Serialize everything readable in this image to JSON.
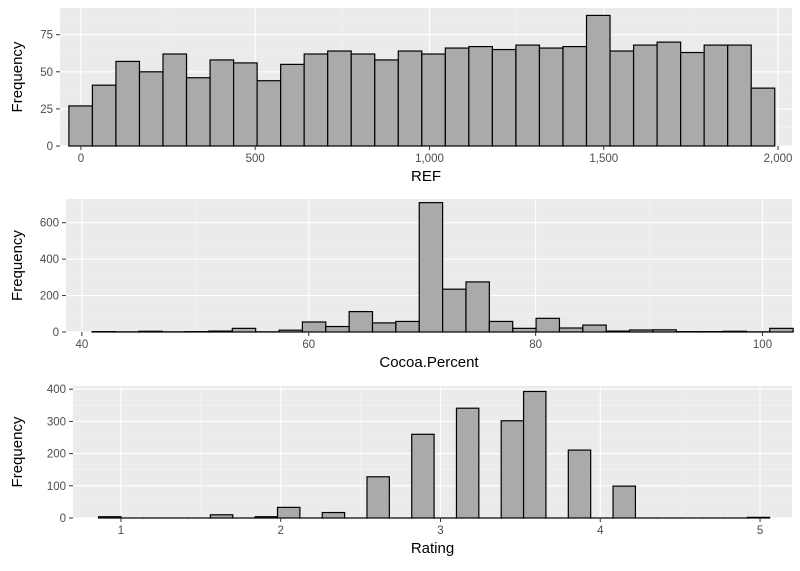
{
  "chart_data": [
    {
      "type": "bar",
      "subtype": "histogram",
      "xlabel": "REF",
      "ylabel": "Frequency",
      "xlim": [
        -60,
        2040
      ],
      "ylim": [
        0,
        93
      ],
      "x_ticks": [
        0,
        500,
        1000,
        1500,
        2000
      ],
      "x_tick_labels": [
        "0",
        "500",
        "1,000",
        "1,500",
        "2,000"
      ],
      "y_ticks": [
        0,
        25,
        50,
        75
      ],
      "y_tick_labels": [
        "0",
        "25",
        "50",
        "75"
      ],
      "bins": {
        "start": -34.5,
        "width": 67.5,
        "values": [
          27,
          41,
          57,
          50,
          62,
          46,
          58,
          56,
          44,
          55,
          62,
          64,
          62,
          58,
          64,
          62,
          66,
          67,
          65,
          68,
          66,
          67,
          88,
          64,
          68,
          70,
          63,
          68,
          68,
          39
        ]
      },
      "grid": true
    },
    {
      "type": "bar",
      "subtype": "histogram",
      "xlabel": "Cocoa.Percent",
      "ylabel": "Frequency",
      "xlim": [
        38.6,
        102.6
      ],
      "ylim": [
        0,
        730
      ],
      "x_ticks": [
        40,
        60,
        80,
        100
      ],
      "x_tick_labels": [
        "40",
        "60",
        "80",
        "100"
      ],
      "y_ticks": [
        0,
        200,
        400,
        600
      ],
      "y_tick_labels": [
        "0",
        "200",
        "400",
        "600"
      ],
      "bins": {
        "start": 40.9,
        "width": 2.06,
        "values": [
          2,
          1,
          4,
          1,
          2,
          5,
          20,
          1,
          10,
          55,
          30,
          112,
          50,
          58,
          710,
          235,
          275,
          58,
          20,
          75,
          22,
          38,
          5,
          11,
          12,
          2,
          2,
          4,
          1,
          20
        ]
      },
      "grid": true
    },
    {
      "type": "bar",
      "subtype": "histogram",
      "xlabel": "Rating",
      "ylabel": "Frequency",
      "xlim": [
        0.7,
        5.2
      ],
      "ylim": [
        0,
        410
      ],
      "x_ticks": [
        1,
        2,
        3,
        4,
        5
      ],
      "x_tick_labels": [
        "1",
        "2",
        "3",
        "4",
        "5"
      ],
      "y_ticks": [
        0,
        100,
        200,
        300,
        400
      ],
      "y_tick_labels": [
        "0",
        "100",
        "200",
        "300",
        "400"
      ],
      "bins": {
        "start": 0.86,
        "width": 0.14,
        "values": [
          4,
          0,
          0,
          0,
          0,
          10,
          0,
          4,
          33,
          0,
          17,
          0,
          128,
          0,
          260,
          0,
          341,
          0,
          302,
          393,
          0,
          211,
          0,
          99,
          0,
          0,
          0,
          0,
          0,
          2
        ]
      },
      "grid": true
    }
  ]
}
